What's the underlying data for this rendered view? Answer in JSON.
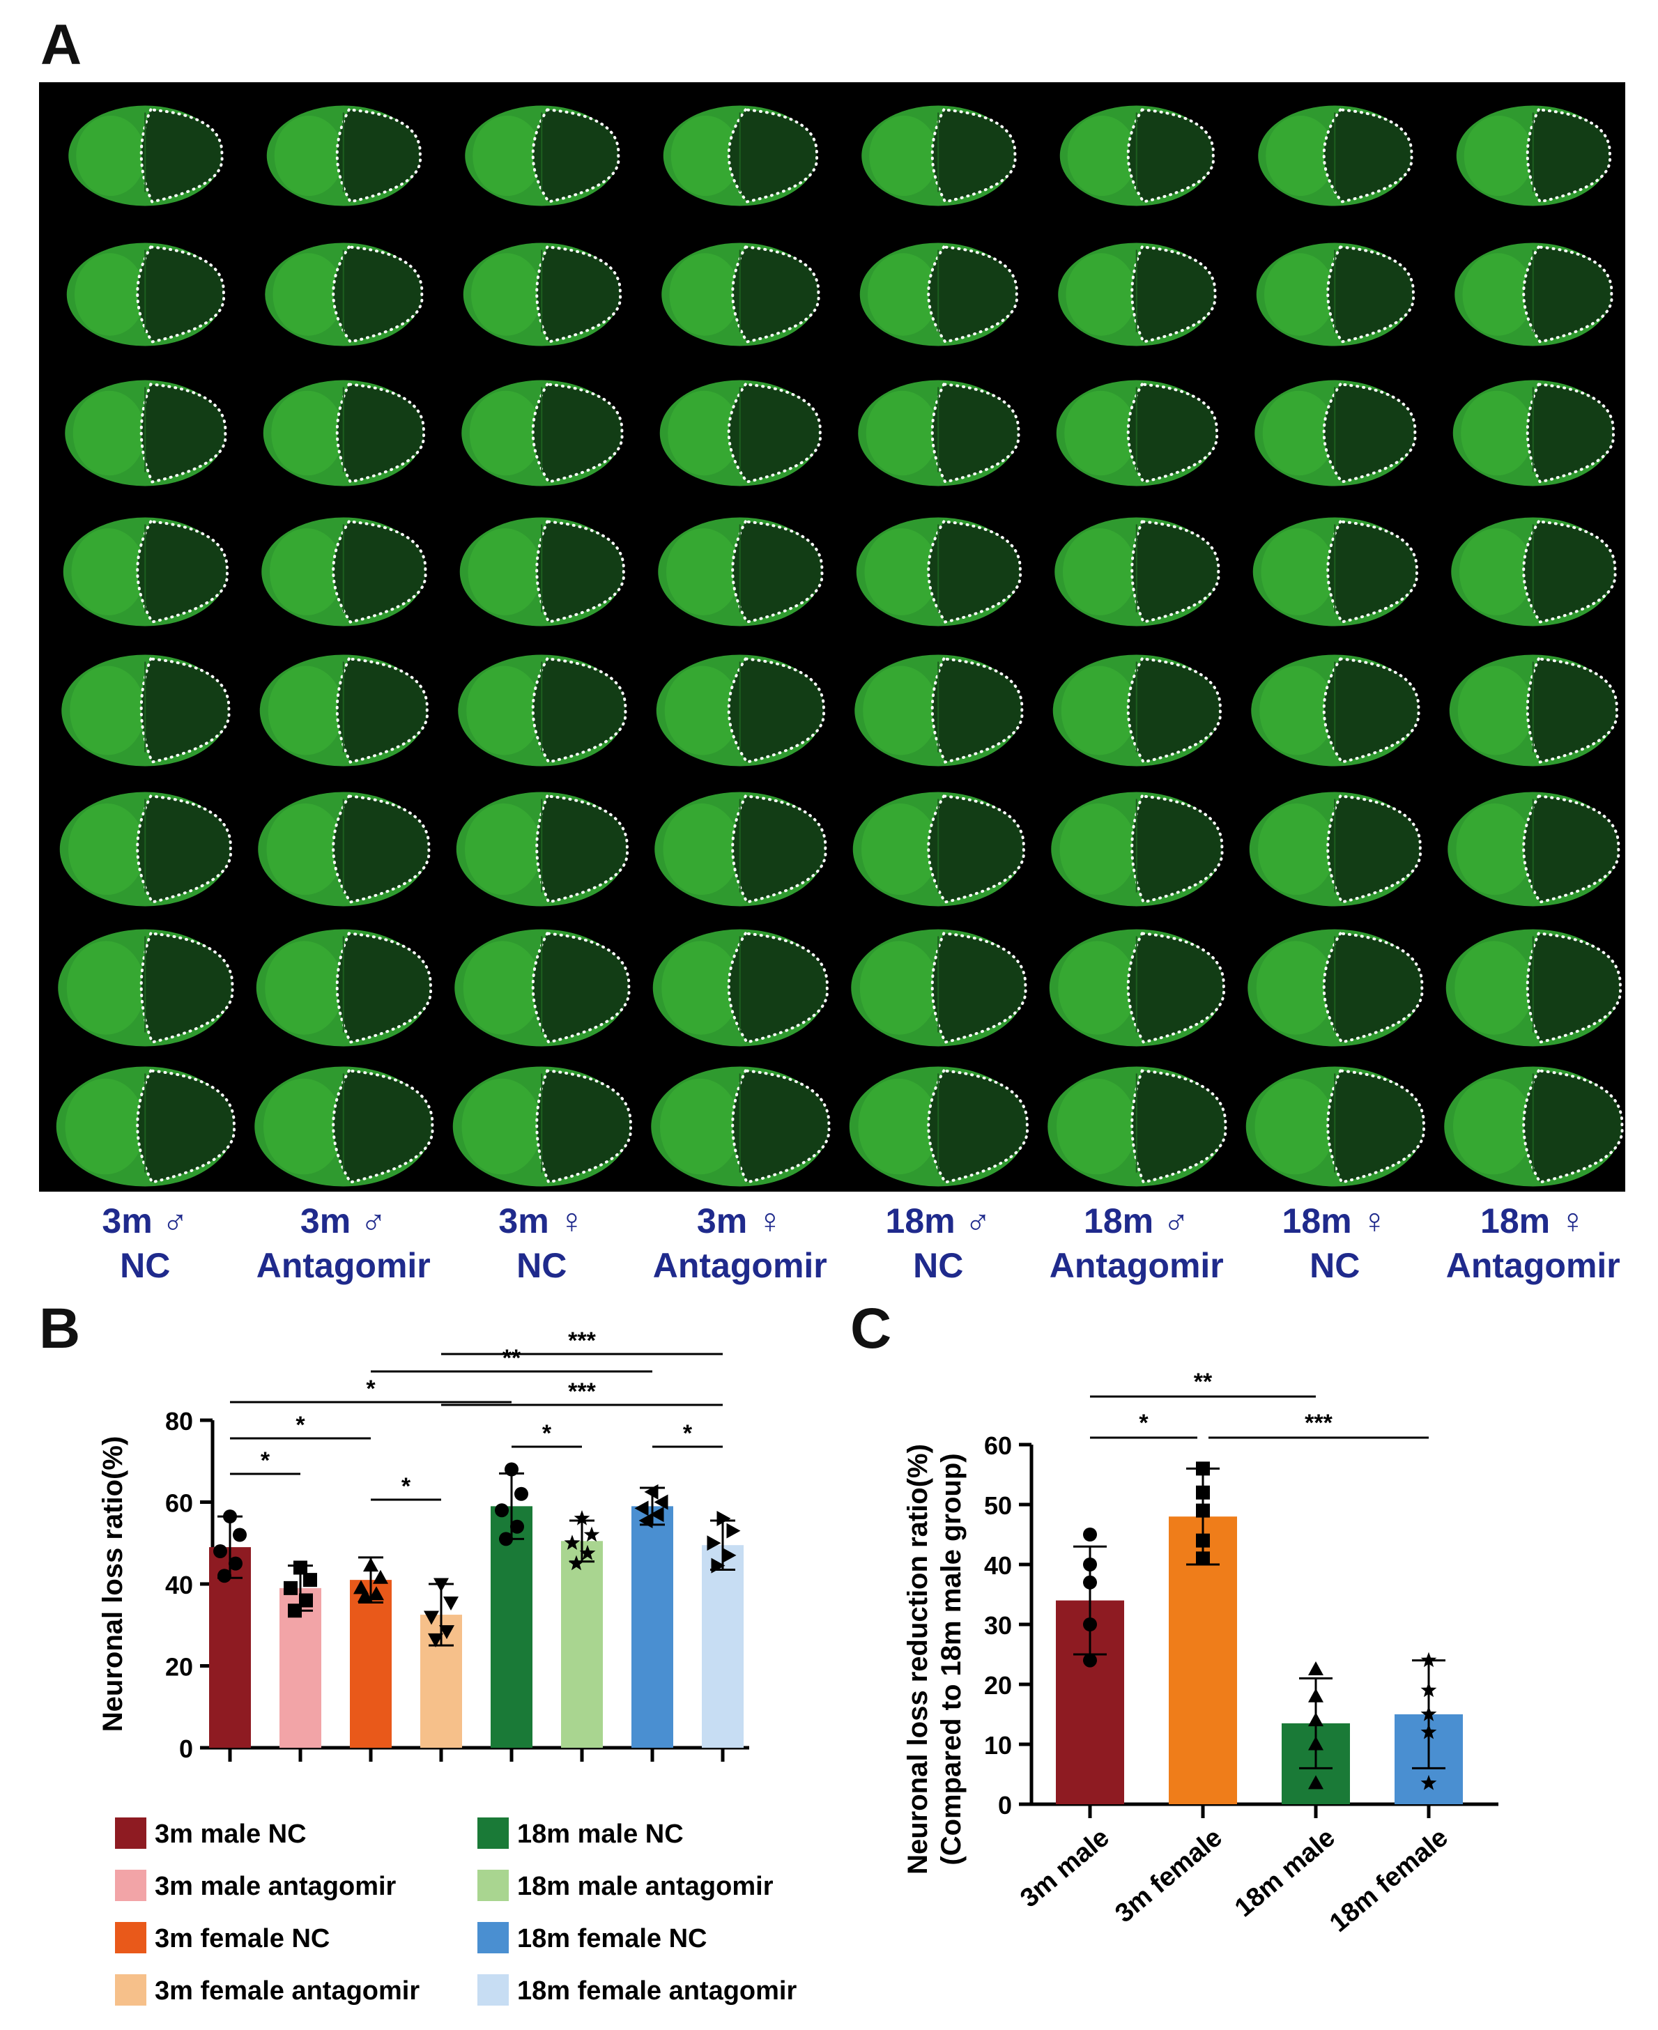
{
  "panels": {
    "a": "A",
    "b": "B",
    "c": "C"
  },
  "panel_a": {
    "rows": 8,
    "groups": [
      {
        "line1": "3m ♂",
        "line2": "NC"
      },
      {
        "line1": "3m ♂",
        "line2": "Antagomir"
      },
      {
        "line1": "3m ♀",
        "line2": "NC"
      },
      {
        "line1": "3m ♀",
        "line2": "Antagomir"
      },
      {
        "line1": "18m ♂",
        "line2": "NC"
      },
      {
        "line1": "18m ♂",
        "line2": "Antagomir"
      },
      {
        "line1": "18m ♀",
        "line2": "NC"
      },
      {
        "line1": "18m ♀",
        "line2": "Antagomir"
      }
    ],
    "colors": {
      "background": "#000000",
      "tissue": "#2f9a2f",
      "tissue_bright": "#44c33a",
      "infarct": "#123d15",
      "outline": "#ffffff"
    }
  },
  "chart_data": [
    {
      "type": "bar",
      "panel": "B",
      "ylabel": "Neuronal loss ratio(%)",
      "ylim": [
        0,
        80
      ],
      "yticks": [
        0,
        20,
        40,
        60,
        80
      ],
      "categories": [
        "3m male NC",
        "3m male antagomir",
        "3m female NC",
        "3m female antagomir",
        "18m male NC",
        "18m male antagomir",
        "18m female NC",
        "18m female antagomir"
      ],
      "values": [
        49,
        39,
        41,
        32.5,
        59,
        50.5,
        59,
        49.5
      ],
      "errors": [
        7.5,
        5.5,
        5.5,
        7.5,
        8,
        5,
        4.5,
        6
      ],
      "colors": [
        "#8e1b22",
        "#f2a4a7",
        "#e9591a",
        "#f6c08a",
        "#1a7a37",
        "#a9d590",
        "#4a8fd1",
        "#c7ddf3"
      ],
      "markers": [
        "circle",
        "square",
        "triangle-up",
        "triangle-down",
        "circle",
        "star",
        "triangle-left",
        "triangle-right"
      ],
      "points": [
        [
          56.5,
          52,
          48,
          45,
          42
        ],
        [
          44,
          41,
          39,
          36,
          33.5
        ],
        [
          44.5,
          41.5,
          39,
          37.5,
          37
        ],
        [
          40,
          35.5,
          32,
          28.5,
          26.5
        ],
        [
          68,
          62,
          58,
          54,
          51
        ],
        [
          56,
          52,
          50,
          47.5,
          45
        ],
        [
          62.5,
          60,
          58.5,
          57,
          55.5
        ],
        [
          56,
          53,
          50,
          47,
          44.5
        ]
      ],
      "significance": [
        {
          "label": "***",
          "from": 3,
          "to": 7
        },
        {
          "label": "**",
          "from": 2,
          "to": 6
        },
        {
          "label": "*",
          "from": 0,
          "to": 4
        },
        {
          "label": "***",
          "from": 3,
          "to": 7
        },
        {
          "label": "*",
          "from": 0,
          "to": 2
        },
        {
          "label": "*",
          "from": 4,
          "to": 5
        },
        {
          "label": "*",
          "from": 6,
          "to": 7
        },
        {
          "label": "*",
          "from": 0,
          "to": 1
        },
        {
          "label": "*",
          "from": 2,
          "to": 3
        }
      ],
      "legend": [
        "3m male NC",
        "3m male antagomir",
        "3m female NC",
        "3m female antagomir",
        "18m male NC",
        "18m male antagomir",
        "18m female NC",
        "18m female antagomir"
      ]
    },
    {
      "type": "bar",
      "panel": "C",
      "ylabel_line1": "Neuronal loss reduction ratio(%)",
      "ylabel_line2": "(Compared to 18m male group)",
      "ylim": [
        0,
        60
      ],
      "yticks": [
        0,
        10,
        20,
        30,
        40,
        50,
        60
      ],
      "categories": [
        "3m male",
        "3m female",
        "18m male",
        "18m female"
      ],
      "values": [
        34,
        48,
        13.5,
        15
      ],
      "errors": [
        9,
        8,
        7.5,
        9
      ],
      "colors": [
        "#8e1b22",
        "#ef7d1a",
        "#1a7a37",
        "#4a8fd1"
      ],
      "markers": [
        "circle",
        "square",
        "triangle-up",
        "star"
      ],
      "points": [
        [
          45,
          40,
          37,
          30,
          24
        ],
        [
          56,
          52,
          49,
          44,
          41
        ],
        [
          22.5,
          18,
          14,
          10,
          3.5
        ],
        [
          24,
          19,
          15,
          12,
          3.5
        ]
      ],
      "significance": [
        {
          "label": "**",
          "from": 0,
          "to": 2
        },
        {
          "label": "*",
          "from": 0,
          "to": 1
        },
        {
          "label": "***",
          "from": 1,
          "to": 3
        }
      ]
    }
  ]
}
